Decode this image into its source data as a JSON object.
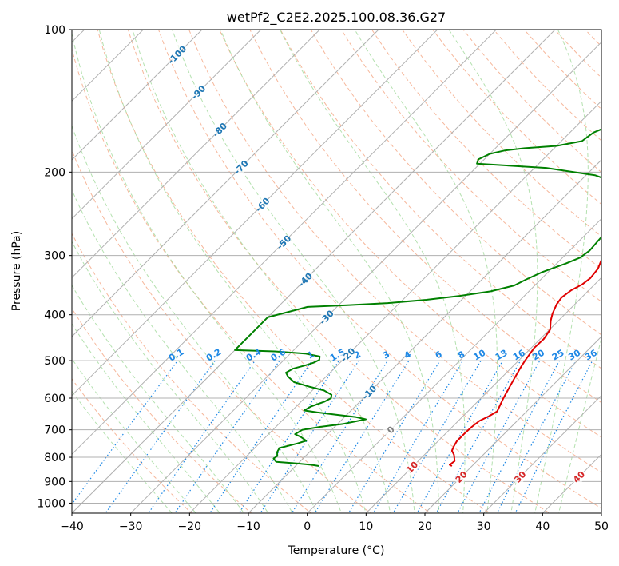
{
  "chart_data": {
    "type": "line",
    "chart_kind": "skew-T log-P diagram",
    "title": "wetPf2_C2E2.2025.100.08.36.G27",
    "xlabel": "Temperature (°C)",
    "ylabel": "Pressure (hPa)",
    "xlim": [
      -40,
      50
    ],
    "ylim": [
      1050,
      100
    ],
    "y_scale": "log",
    "grid": true,
    "x_ticks": [
      -40,
      -30,
      -20,
      -10,
      0,
      10,
      20,
      30,
      40,
      50
    ],
    "y_ticks": [
      100,
      200,
      300,
      400,
      500,
      600,
      700,
      800,
      900,
      1000
    ],
    "skew_isotherm_labels": [
      -100,
      -90,
      -80,
      -70,
      -60,
      -50,
      -40,
      -30,
      -20,
      -10,
      0,
      10,
      20,
      30,
      40
    ],
    "mixing_ratio_labels": [
      "0.1",
      "0.2",
      "0.4",
      "0.6",
      "1",
      "1.5",
      "2",
      "3",
      "4",
      "6",
      "8",
      "10",
      "13",
      "16",
      "20",
      "25",
      "30",
      "36"
    ],
    "colors": {
      "temperature": "#e00000",
      "dewpoint": "#008000",
      "isotherm_label_cold": "#1f77b4",
      "isotherm_label_zero": "#7f7f7f",
      "isotherm_label_warm": "#d62728",
      "mixing_ratio": "#1e88e5",
      "dry_adiabat": "#f4a582",
      "moist_adiabat": "#a1d99b",
      "grid": "#b0b0b0"
    },
    "series": [
      {
        "key": "temperature",
        "points": [
          [
            16.6,
            835
          ],
          [
            16.0,
            830
          ],
          [
            16.2,
            815
          ],
          [
            15.5,
            800
          ],
          [
            15.0,
            790
          ],
          [
            14.0,
            775
          ],
          [
            13.6,
            760
          ],
          [
            13.2,
            740
          ],
          [
            13.2,
            710
          ],
          [
            13.3,
            690
          ],
          [
            13.6,
            670
          ],
          [
            14.4,
            655
          ],
          [
            15.0,
            640
          ],
          [
            14.4,
            620
          ],
          [
            13.8,
            600
          ],
          [
            13.0,
            570
          ],
          [
            12.3,
            545
          ],
          [
            11.6,
            520
          ],
          [
            11.1,
            500
          ],
          [
            10.5,
            470
          ],
          [
            10.6,
            450
          ],
          [
            10.1,
            430
          ],
          [
            8.7,
            412
          ],
          [
            7.8,
            398
          ],
          [
            6.9,
            380
          ],
          [
            6.6,
            368
          ],
          [
            7.0,
            355
          ],
          [
            7.9,
            345
          ],
          [
            8.2,
            335
          ],
          [
            7.9,
            320
          ],
          [
            6.9,
            305
          ],
          [
            5.6,
            290
          ],
          [
            3.9,
            275
          ],
          [
            1.8,
            258
          ],
          [
            0.2,
            245
          ],
          [
            -0.9,
            233
          ],
          [
            -0.8,
            222
          ],
          [
            0.7,
            213
          ],
          [
            2.5,
            205
          ],
          [
            4.8,
            198
          ],
          [
            6.3,
            190
          ],
          [
            6.9,
            180
          ],
          [
            7.3,
            170
          ],
          [
            7.3,
            160
          ],
          [
            7.2,
            150
          ],
          [
            7.6,
            140
          ],
          [
            8.4,
            133
          ],
          [
            10.2,
            125
          ],
          [
            12.5,
            118
          ],
          [
            13.4,
            113
          ],
          [
            13.2,
            108
          ],
          [
            13.1,
            100
          ]
        ]
      },
      {
        "key": "dewpoint",
        "points": [
          [
            -6.0,
            835
          ],
          [
            -7.5,
            830
          ],
          [
            -10.0,
            825
          ],
          [
            -14.0,
            818
          ],
          [
            -15.0,
            805
          ],
          [
            -14.8,
            795
          ],
          [
            -15.5,
            780
          ],
          [
            -15.8,
            765
          ],
          [
            -13.5,
            748
          ],
          [
            -12.5,
            738
          ],
          [
            -14.0,
            725
          ],
          [
            -15.5,
            715
          ],
          [
            -15.0,
            700
          ],
          [
            -12.5,
            690
          ],
          [
            -9.0,
            680
          ],
          [
            -6.0,
            665
          ],
          [
            -8.0,
            658
          ],
          [
            -12.0,
            650
          ],
          [
            -15.5,
            643
          ],
          [
            -18.0,
            637
          ],
          [
            -17.5,
            625
          ],
          [
            -16.0,
            610
          ],
          [
            -15.5,
            600
          ],
          [
            -16.0,
            590
          ],
          [
            -18.0,
            578
          ],
          [
            -21.0,
            568
          ],
          [
            -24.5,
            555
          ],
          [
            -26.5,
            540
          ],
          [
            -27.5,
            530
          ],
          [
            -27.0,
            520
          ],
          [
            -25.5,
            512
          ],
          [
            -24.5,
            505
          ],
          [
            -24.0,
            498
          ],
          [
            -24.5,
            490
          ],
          [
            -27.5,
            483
          ],
          [
            -33.0,
            478
          ],
          [
            -40.0,
            475
          ],
          [
            -40.0,
            405
          ],
          [
            -35.0,
            385
          ],
          [
            -28.5,
            382
          ],
          [
            -22.0,
            378
          ],
          [
            -16.0,
            372
          ],
          [
            -11.0,
            365
          ],
          [
            -6.5,
            357
          ],
          [
            -3.5,
            347
          ],
          [
            -2.5,
            337
          ],
          [
            -1.0,
            325
          ],
          [
            1.5,
            312
          ],
          [
            3.0,
            303
          ],
          [
            3.4,
            293
          ],
          [
            3.2,
            280
          ],
          [
            3.0,
            267
          ],
          [
            2.5,
            255
          ],
          [
            1.5,
            242
          ],
          [
            0.0,
            229
          ],
          [
            -1.3,
            219
          ],
          [
            -3.5,
            211
          ],
          [
            -8.5,
            203
          ],
          [
            -18.0,
            196
          ],
          [
            -30.5,
            192
          ],
          [
            -31.0,
            188
          ],
          [
            -30.0,
            183
          ],
          [
            -28.0,
            180
          ],
          [
            -25.0,
            178
          ],
          [
            -20.0,
            176
          ],
          [
            -16.5,
            172
          ],
          [
            -16.0,
            165
          ],
          [
            -14.5,
            160
          ],
          [
            -11.5,
            155
          ],
          [
            -9.0,
            150
          ],
          [
            -6.5,
            142
          ],
          [
            -5.0,
            135
          ],
          [
            -4.0,
            126
          ],
          [
            -3.5,
            118
          ],
          [
            -2.0,
            112
          ],
          [
            0.5,
            107
          ],
          [
            2.5,
            102
          ],
          [
            3.3,
            100
          ]
        ]
      }
    ]
  }
}
